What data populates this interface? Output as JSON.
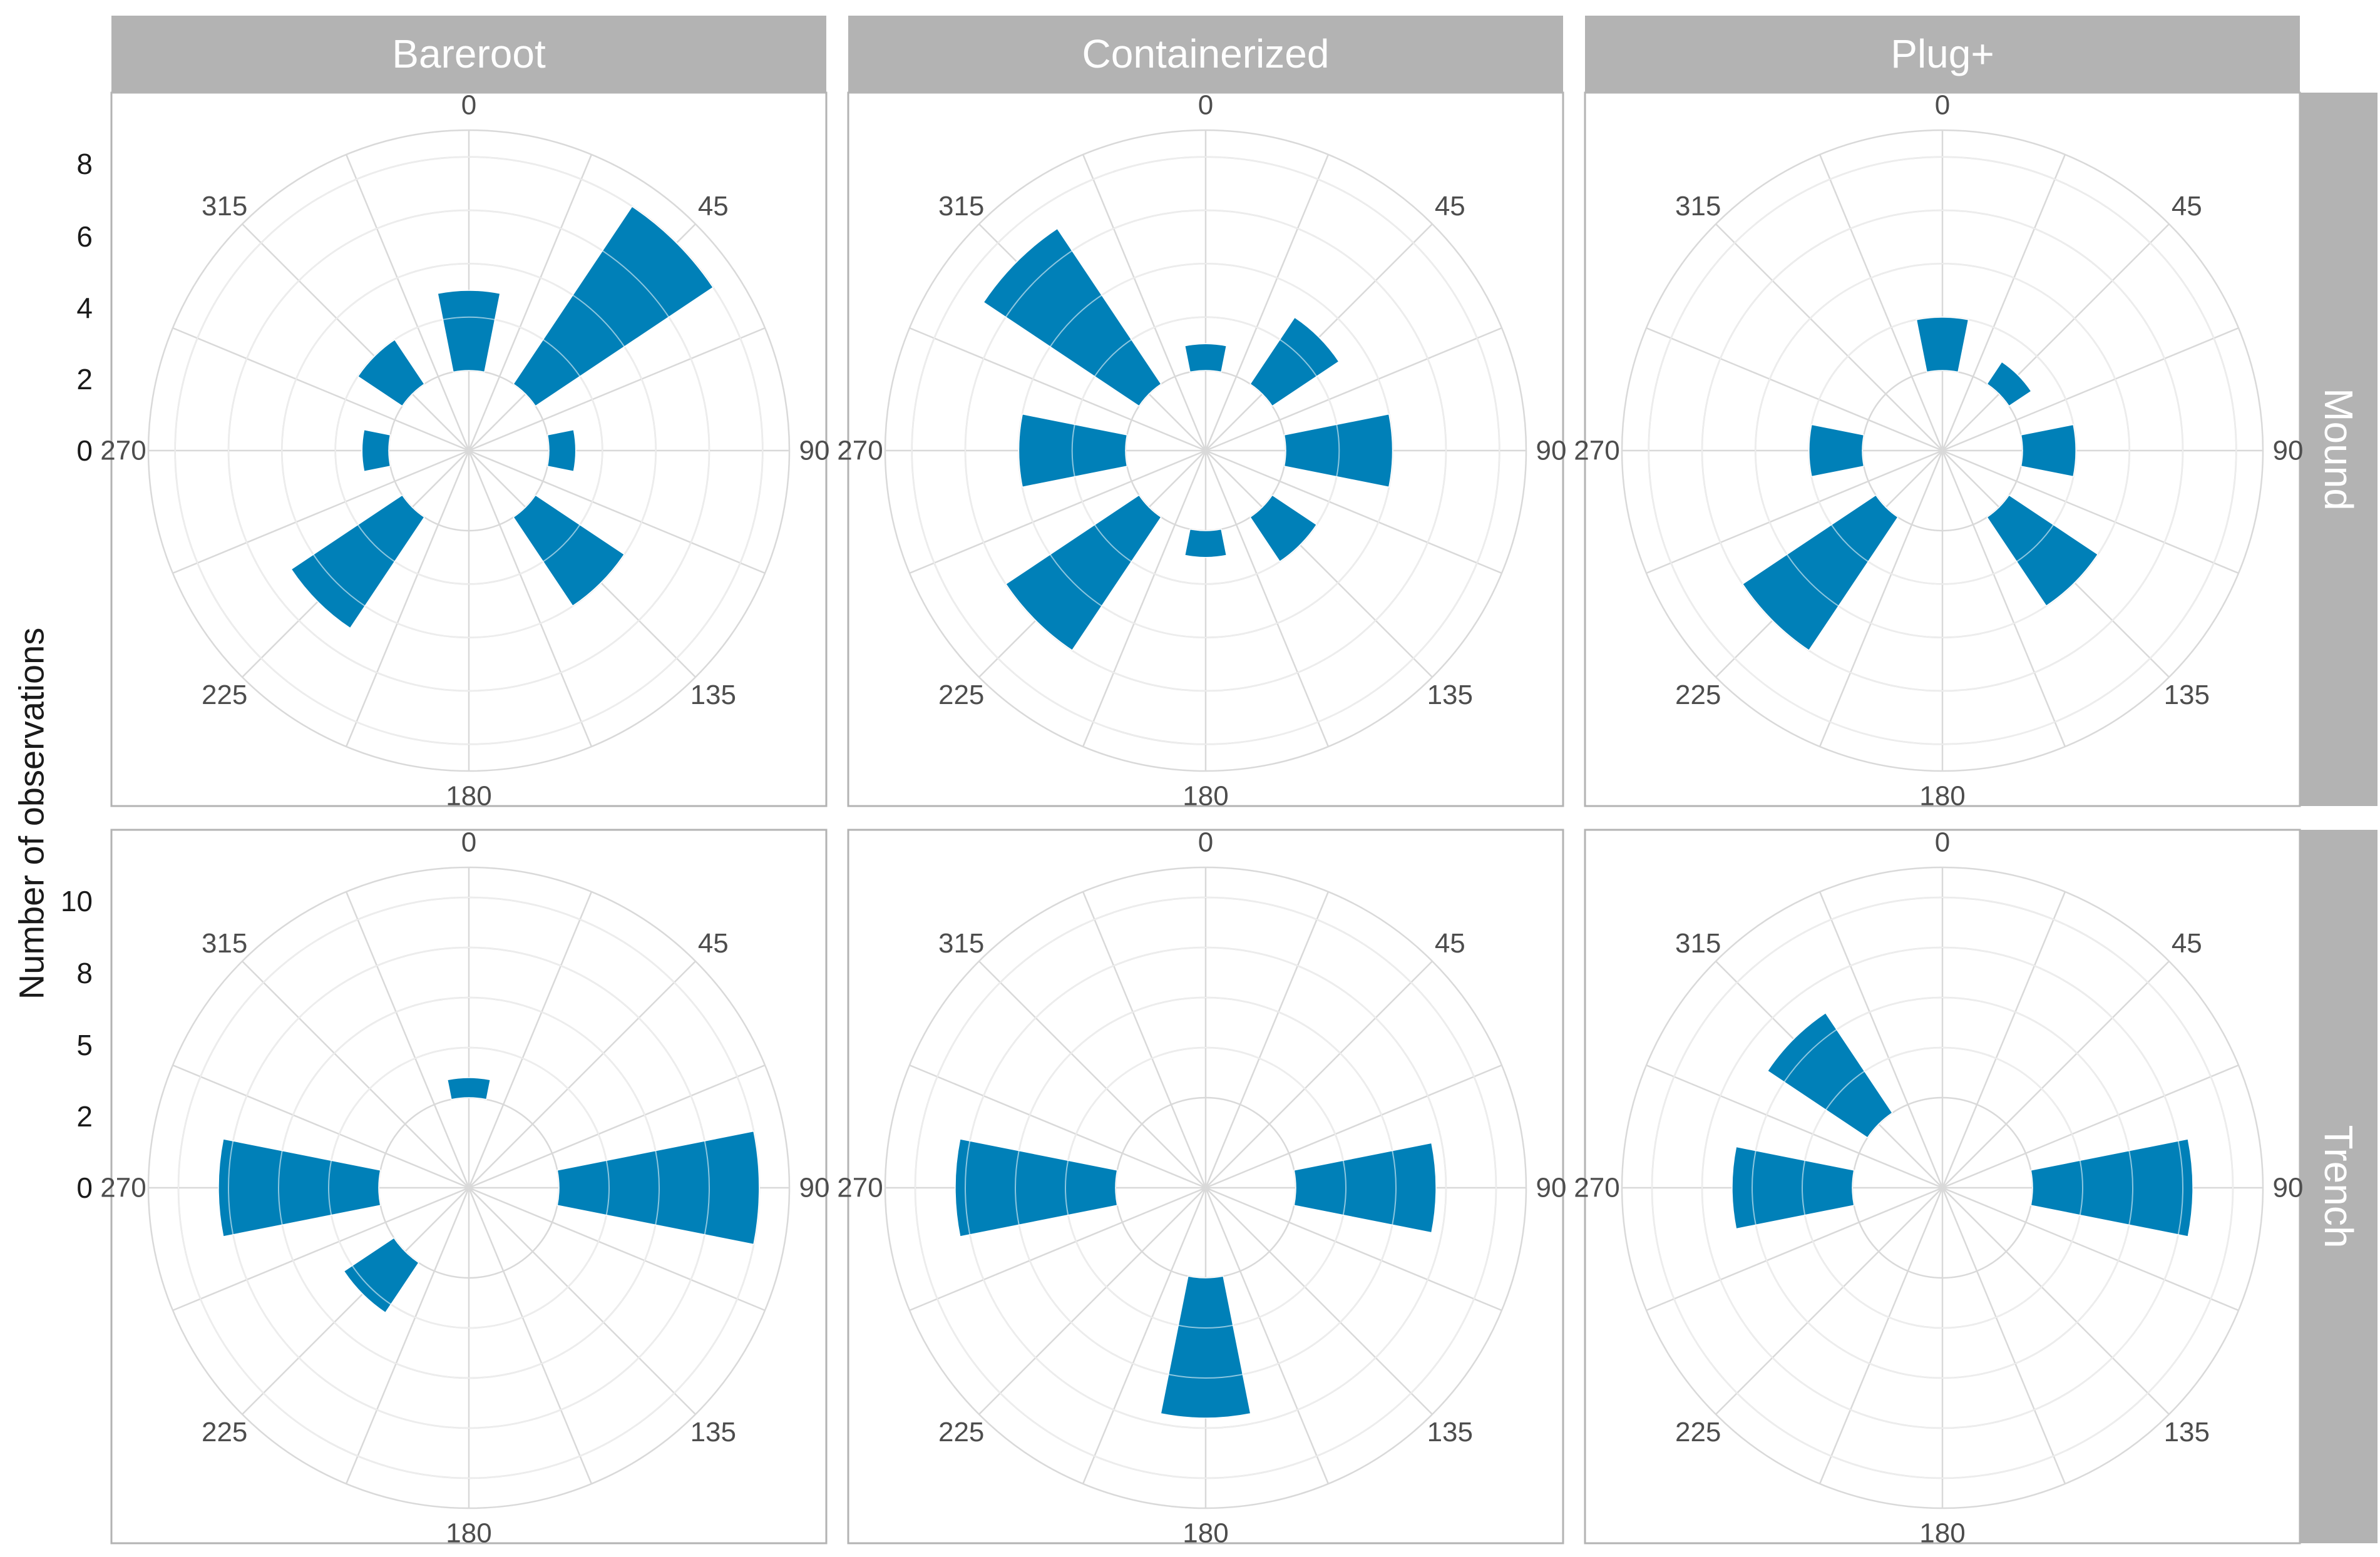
{
  "chart_data": {
    "type": "polar-bar",
    "title": "",
    "ylabel": "Number of observations",
    "columns": [
      "Bareroot",
      "Containerized",
      "Plug+"
    ],
    "rows": [
      "Mound",
      "Trench"
    ],
    "angle_labels": [
      "0",
      "45",
      "90",
      "135",
      "180",
      "225",
      "270",
      "315"
    ],
    "row_scales": {
      "Mound": {
        "ylim": [
          -3,
          9
        ],
        "ticks": [
          "8",
          "6",
          "4",
          "2",
          "0"
        ],
        "tick_values": [
          8,
          6,
          4,
          2,
          0
        ]
      },
      "Trench": {
        "ylim": [
          -4.5,
          11.5
        ],
        "ticks": [
          "10",
          "8",
          "5",
          "2",
          "0"
        ],
        "tick_values": [
          10,
          7.5,
          5,
          2.5,
          0
        ]
      }
    },
    "bin_width_deg": 22.5,
    "bin_centers_deg": [
      0,
      22.5,
      45,
      67.5,
      90,
      112.5,
      135,
      157.5,
      180,
      202.5,
      225,
      247.5,
      270,
      292.5,
      315,
      337.5
    ],
    "panels": [
      {
        "column": "Bareroot",
        "row": "Mound",
        "values": [
          3,
          0,
          8,
          0,
          1,
          0,
          4,
          0,
          0,
          0,
          5,
          0,
          1,
          0,
          2,
          0
        ]
      },
      {
        "column": "Containerized",
        "row": "Mound",
        "values": [
          1,
          0,
          3,
          0,
          4,
          0,
          2,
          0,
          1,
          0,
          6,
          0,
          4,
          0,
          7,
          0
        ]
      },
      {
        "column": "Plug+",
        "row": "Mound",
        "values": [
          2,
          0,
          1,
          0,
          2,
          0,
          4,
          0,
          0,
          0,
          6,
          0,
          2,
          0,
          0,
          0
        ]
      },
      {
        "column": "Bareroot",
        "row": "Trench",
        "values": [
          1,
          0,
          0,
          0,
          10,
          0,
          0,
          0,
          0,
          0,
          3,
          0,
          8,
          0,
          0,
          0
        ]
      },
      {
        "column": "Containerized",
        "row": "Trench",
        "values": [
          0,
          0,
          0,
          0,
          7,
          0,
          0,
          0,
          7,
          0,
          0,
          0,
          8,
          0,
          0,
          0
        ]
      },
      {
        "column": "Plug+",
        "row": "Trench",
        "values": [
          0,
          0,
          0,
          0,
          8,
          0,
          0,
          0,
          0,
          0,
          0,
          0,
          6,
          0,
          6,
          0
        ]
      }
    ],
    "colors": {
      "bar": "#0080b8",
      "grid": "#d9d9d9",
      "strip": "#b3b3b3",
      "panel_border": "#b3b3b3"
    }
  }
}
